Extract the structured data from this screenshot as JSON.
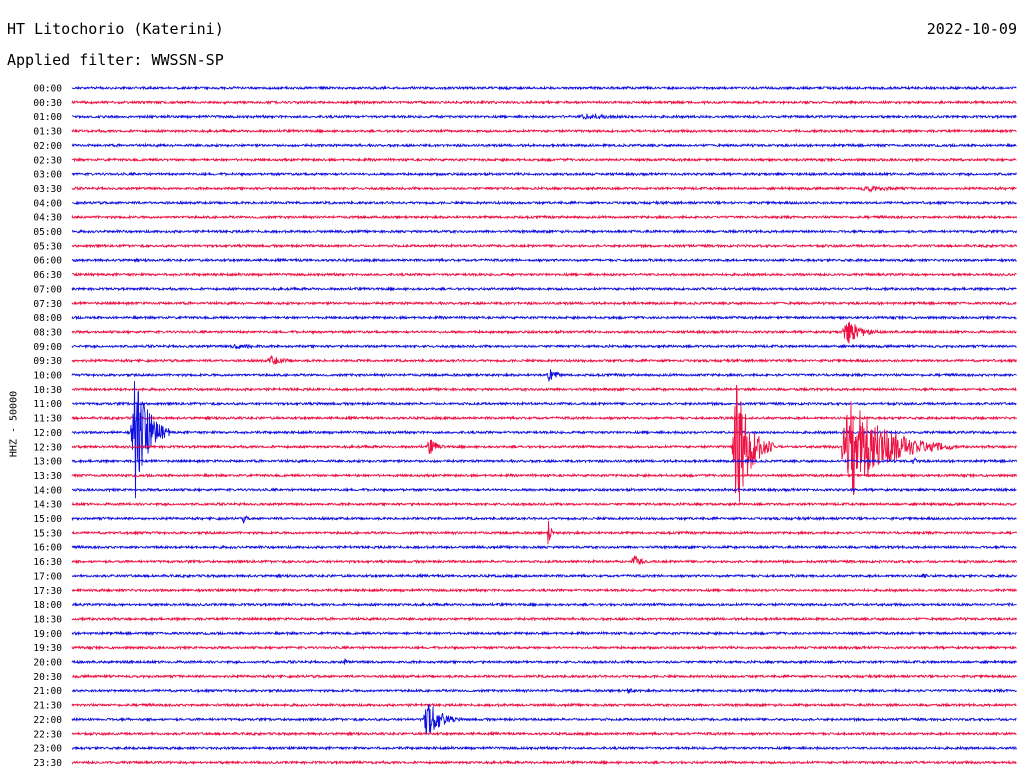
{
  "header": {
    "station": "HT Litochorio (Katerini)",
    "date": "2022-10-09",
    "filter_label": "Applied filter: WWSSN-SP",
    "channel_label": "HHZ - 50000"
  },
  "colors": {
    "blue": "#1010e0",
    "red": "#ee1144"
  },
  "chart_data": {
    "type": "line",
    "title": "HT Litochorio (Katerini)",
    "xlabel": "",
    "ylabel": "HHZ - 50000",
    "ylim": [
      0,
      47
    ],
    "grid": false,
    "legend": "none",
    "row_labels": [
      "00:00",
      "00:30",
      "01:00",
      "01:30",
      "02:00",
      "02:30",
      "03:00",
      "03:30",
      "04:00",
      "04:30",
      "05:00",
      "05:30",
      "06:00",
      "06:30",
      "07:00",
      "07:30",
      "08:00",
      "08:30",
      "09:00",
      "09:30",
      "10:00",
      "10:30",
      "11:00",
      "11:30",
      "12:00",
      "12:30",
      "13:00",
      "13:30",
      "14:00",
      "14:30",
      "15:00",
      "15:30",
      "16:00",
      "16:30",
      "17:00",
      "17:30",
      "18:00",
      "18:30",
      "19:00",
      "19:30",
      "20:00",
      "20:30",
      "21:00",
      "21:30",
      "22:00",
      "22:30",
      "23:00",
      "23:30"
    ],
    "row_colors": [
      "blue",
      "red"
    ],
    "events": [
      {
        "row": 2,
        "minute": 16.0,
        "amp": 3,
        "dur": 4.5
      },
      {
        "row": 7,
        "minute": 25.0,
        "amp": 3,
        "dur": 4.0
      },
      {
        "row": 17,
        "minute": 24.5,
        "amp": 16,
        "dur": 1.3
      },
      {
        "row": 18,
        "minute": 5.0,
        "amp": 3,
        "dur": 3.0
      },
      {
        "row": 19,
        "minute": 6.2,
        "amp": 5,
        "dur": 1.5
      },
      {
        "row": 20,
        "minute": 15.1,
        "amp": 7,
        "dur": 0.8
      },
      {
        "row": 24,
        "minute": 1.9,
        "amp": 70,
        "dur": 1.2
      },
      {
        "row": 25,
        "minute": 11.3,
        "amp": 9,
        "dur": 0.8
      },
      {
        "row": 25,
        "minute": 21.0,
        "amp": 75,
        "dur": 1.3
      },
      {
        "row": 25,
        "minute": 24.5,
        "amp": 50,
        "dur": 3.5
      },
      {
        "row": 26,
        "minute": 26.7,
        "amp": 5,
        "dur": 0.4
      },
      {
        "row": 30,
        "minute": 5.4,
        "amp": 5,
        "dur": 0.4
      },
      {
        "row": 31,
        "minute": 15.1,
        "amp": 13,
        "dur": 0.3
      },
      {
        "row": 33,
        "minute": 17.8,
        "amp": 7,
        "dur": 0.8
      },
      {
        "row": 34,
        "minute": 27.0,
        "amp": 4,
        "dur": 0.4
      },
      {
        "row": 40,
        "minute": 8.6,
        "amp": 4,
        "dur": 0.5
      },
      {
        "row": 42,
        "minute": 17.6,
        "amp": 4,
        "dur": 0.6
      },
      {
        "row": 44,
        "minute": 11.2,
        "amp": 22,
        "dur": 1.2
      }
    ]
  }
}
